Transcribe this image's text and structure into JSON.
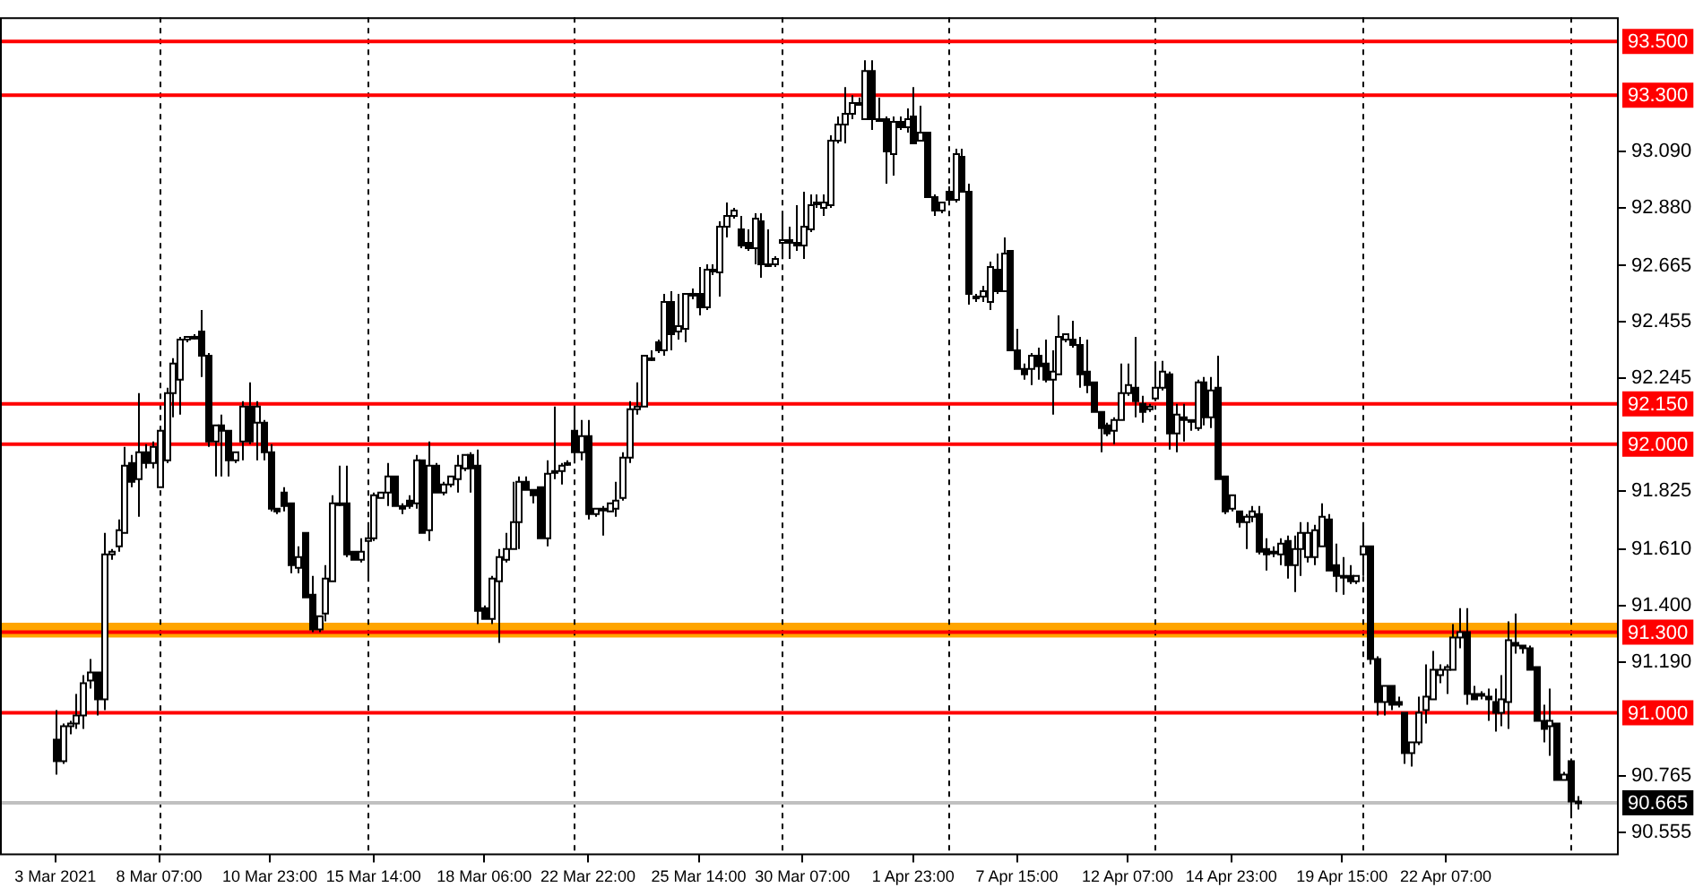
{
  "chart_data": {
    "type": "candlestick",
    "categories": [
      "3 Mar 2021",
      null,
      null,
      null,
      null,
      null,
      null,
      null,
      null,
      null,
      null,
      null,
      null,
      null,
      null,
      "8 Mar 07:00",
      null,
      null,
      null,
      null,
      null,
      null,
      null,
      null,
      null,
      null,
      null,
      null,
      null,
      null,
      null,
      "10 Mar 23:00",
      null,
      null,
      null,
      null,
      null,
      null,
      null,
      null,
      null,
      null,
      null,
      null,
      null,
      null,
      "15 Mar 14:00",
      null,
      null,
      null,
      null,
      null,
      null,
      null,
      null,
      null,
      null,
      null,
      null,
      null,
      null,
      null,
      "18 Mar 06:00",
      null,
      null,
      null,
      null,
      null,
      null,
      null,
      null,
      null,
      null,
      null,
      null,
      null,
      null,
      "22 Mar 22:00",
      null,
      null,
      null,
      null,
      null,
      null,
      null,
      null,
      null,
      null,
      null,
      null,
      null,
      null,
      null,
      "25 Mar 14:00",
      null,
      null,
      null,
      null,
      null,
      null,
      null,
      null,
      null,
      null,
      null,
      null,
      null,
      null,
      "30 Mar 07:00",
      null,
      null,
      null,
      null,
      null,
      null,
      null,
      null,
      null,
      null,
      null,
      null,
      null,
      null,
      null,
      "1 Apr 23:00",
      null,
      null,
      null,
      null,
      null,
      null,
      null,
      null,
      null,
      null,
      null,
      null,
      null,
      null,
      "7 Apr 15:00",
      null,
      null,
      null,
      null,
      null,
      null,
      null,
      null,
      null,
      null,
      null,
      null,
      null,
      null,
      null,
      "12 Apr 07:00",
      null,
      null,
      null,
      null,
      null,
      null,
      null,
      null,
      null,
      null,
      null,
      null,
      null,
      null,
      "14 Apr 23:00",
      null,
      null,
      null,
      null,
      null,
      null,
      null,
      null,
      null,
      null,
      null,
      null,
      null,
      null,
      null,
      "19 Apr 15:00",
      null,
      null,
      null,
      null,
      null,
      null,
      null,
      null,
      null,
      null,
      null,
      null,
      null,
      null,
      "22 Apr 07:00",
      null,
      null,
      null,
      null,
      null,
      null,
      null,
      null,
      null,
      null,
      null,
      null,
      null,
      null,
      null,
      null,
      null,
      null,
      null
    ],
    "ohlc": [
      [
        90.9,
        91.01,
        90.77,
        90.82
      ],
      [
        90.82,
        90.96,
        90.81,
        90.95
      ],
      [
        90.95,
        90.97,
        90.92,
        90.96
      ],
      [
        90.96,
        91.07,
        90.94,
        90.99
      ],
      [
        90.99,
        91.14,
        90.94,
        91.11
      ],
      [
        91.12,
        91.2,
        91.09,
        91.15
      ],
      [
        91.15,
        91.15,
        90.99,
        91.05
      ],
      [
        91.05,
        91.67,
        91.01,
        91.59
      ],
      [
        91.59,
        91.61,
        91.57,
        91.6
      ],
      [
        91.62,
        91.72,
        91.6,
        91.68
      ],
      [
        91.67,
        91.99,
        91.67,
        91.92
      ],
      [
        91.93,
        91.96,
        91.84,
        91.86
      ],
      [
        91.87,
        92.19,
        91.73,
        91.97
      ],
      [
        91.97,
        92.0,
        91.91,
        91.93
      ],
      [
        91.93,
        92.01,
        91.91,
        91.99
      ],
      [
        91.84,
        92.06,
        91.84,
        92.05
      ],
      [
        91.94,
        92.21,
        91.93,
        92.19
      ],
      [
        92.19,
        92.32,
        92.1,
        92.3
      ],
      [
        92.24,
        92.4,
        92.11,
        92.39
      ],
      [
        92.39,
        92.4,
        92.38,
        92.4
      ],
      [
        92.4,
        92.41,
        92.39,
        92.4
      ],
      [
        92.42,
        92.5,
        92.25,
        92.33
      ],
      [
        92.33,
        92.34,
        91.99,
        92.01
      ],
      [
        92.01,
        92.07,
        91.88,
        92.07
      ],
      [
        92.07,
        92.11,
        91.88,
        92.05
      ],
      [
        92.05,
        92.05,
        91.88,
        91.94
      ],
      [
        91.94,
        91.97,
        91.93,
        91.97
      ],
      [
        92.01,
        92.16,
        91.94,
        92.14
      ],
      [
        92.14,
        92.23,
        92.0,
        92.01
      ],
      [
        92.08,
        92.16,
        91.94,
        92.14
      ],
      [
        92.08,
        92.09,
        91.94,
        91.97
      ],
      [
        91.97,
        92.0,
        91.75,
        91.76
      ],
      [
        91.76,
        91.76,
        91.74,
        91.75
      ],
      [
        91.82,
        91.84,
        91.75,
        91.77
      ],
      [
        91.78,
        91.78,
        91.52,
        91.55
      ],
      [
        91.54,
        91.62,
        91.52,
        91.58
      ],
      [
        91.67,
        91.67,
        91.43,
        91.43
      ],
      [
        91.44,
        91.51,
        91.3,
        91.31
      ],
      [
        91.31,
        91.36,
        91.3,
        91.36
      ],
      [
        91.37,
        91.55,
        91.34,
        91.5
      ],
      [
        91.49,
        91.81,
        91.49,
        91.78
      ],
      [
        91.78,
        91.92,
        91.77,
        91.78
      ],
      [
        91.78,
        91.92,
        91.58,
        91.59
      ],
      [
        91.6,
        91.6,
        91.57,
        91.57
      ],
      [
        91.57,
        91.65,
        91.56,
        91.6
      ],
      [
        91.64,
        91.71,
        91.5,
        91.65
      ],
      [
        91.65,
        91.82,
        91.64,
        91.81
      ],
      [
        91.8,
        91.82,
        91.8,
        91.82
      ],
      [
        91.82,
        91.93,
        91.77,
        91.88
      ],
      [
        91.88,
        91.88,
        91.77,
        91.77
      ],
      [
        91.77,
        91.78,
        91.74,
        91.76
      ],
      [
        91.79,
        91.81,
        91.76,
        91.77
      ],
      [
        91.78,
        91.96,
        91.76,
        91.94
      ],
      [
        91.94,
        91.94,
        91.67,
        91.67
      ],
      [
        91.68,
        92.01,
        91.64,
        91.92
      ],
      [
        91.92,
        91.93,
        91.82,
        91.82
      ],
      [
        91.82,
        91.86,
        91.81,
        91.85
      ],
      [
        91.85,
        91.88,
        91.84,
        91.88
      ],
      [
        91.87,
        91.96,
        91.82,
        91.92
      ],
      [
        91.91,
        91.96,
        91.9,
        91.96
      ],
      [
        91.96,
        91.97,
        91.82,
        91.91
      ],
      [
        91.92,
        91.98,
        91.33,
        91.38
      ],
      [
        91.39,
        91.4,
        91.35,
        91.35
      ],
      [
        91.35,
        91.51,
        91.33,
        91.5
      ],
      [
        91.49,
        91.61,
        91.26,
        91.58
      ],
      [
        91.57,
        91.67,
        91.56,
        91.61
      ],
      [
        91.61,
        91.86,
        91.61,
        91.71
      ],
      [
        91.71,
        91.88,
        91.61,
        91.86
      ],
      [
        91.86,
        91.88,
        91.83,
        91.83
      ],
      [
        91.83,
        91.83,
        91.78,
        91.81
      ],
      [
        91.84,
        91.84,
        91.65,
        91.65
      ],
      [
        91.65,
        91.94,
        91.62,
        91.89
      ],
      [
        91.9,
        92.14,
        91.87,
        91.9
      ],
      [
        91.9,
        91.93,
        91.85,
        91.92
      ],
      [
        91.93,
        91.94,
        91.92,
        91.93
      ],
      [
        92.05,
        92.14,
        91.94,
        91.97
      ],
      [
        91.97,
        92.09,
        91.94,
        92.03
      ],
      [
        92.03,
        92.09,
        91.72,
        91.74
      ],
      [
        91.74,
        91.76,
        91.73,
        91.76
      ],
      [
        91.76,
        91.77,
        91.66,
        91.76
      ],
      [
        91.75,
        91.78,
        91.75,
        91.78
      ],
      [
        91.76,
        91.86,
        91.73,
        91.79
      ],
      [
        91.8,
        91.97,
        91.79,
        91.95
      ],
      [
        91.95,
        92.16,
        91.93,
        92.13
      ],
      [
        92.13,
        92.23,
        92.11,
        92.14
      ],
      [
        92.14,
        92.33,
        92.14,
        92.33
      ],
      [
        92.32,
        92.35,
        92.31,
        92.32
      ],
      [
        92.38,
        92.39,
        92.34,
        92.35
      ],
      [
        92.35,
        92.56,
        92.33,
        92.53
      ],
      [
        92.53,
        92.57,
        92.35,
        92.41
      ],
      [
        92.42,
        92.56,
        92.39,
        92.44
      ],
      [
        92.43,
        92.56,
        92.38,
        92.56
      ],
      [
        92.56,
        92.58,
        92.54,
        92.56
      ],
      [
        92.56,
        92.66,
        92.48,
        92.51
      ],
      [
        92.51,
        92.67,
        92.5,
        92.65
      ],
      [
        92.65,
        92.67,
        92.63,
        92.65
      ],
      [
        92.64,
        92.83,
        92.55,
        92.81
      ],
      [
        92.81,
        92.9,
        92.77,
        92.85
      ],
      [
        92.85,
        92.88,
        92.84,
        92.87
      ],
      [
        92.8,
        92.85,
        92.73,
        92.74
      ],
      [
        92.75,
        92.8,
        92.72,
        92.73
      ],
      [
        92.73,
        92.86,
        92.67,
        92.84
      ],
      [
        92.83,
        92.86,
        92.62,
        92.67
      ],
      [
        92.67,
        92.8,
        92.66,
        92.67
      ],
      [
        92.67,
        92.7,
        92.66,
        92.69
      ],
      [
        92.75,
        92.86,
        92.7,
        92.76
      ],
      [
        92.76,
        92.81,
        92.69,
        92.75
      ],
      [
        92.75,
        92.89,
        92.72,
        92.74
      ],
      [
        92.74,
        92.94,
        92.69,
        92.81
      ],
      [
        92.8,
        92.93,
        92.79,
        92.89
      ],
      [
        92.9,
        92.93,
        92.88,
        92.9
      ],
      [
        92.88,
        92.93,
        92.85,
        92.9
      ],
      [
        92.89,
        93.15,
        92.88,
        93.13
      ],
      [
        93.13,
        93.22,
        93.12,
        93.19
      ],
      [
        93.19,
        93.33,
        93.12,
        93.23
      ],
      [
        93.23,
        93.3,
        93.21,
        93.27
      ],
      [
        93.27,
        93.29,
        93.26,
        93.27
      ],
      [
        93.21,
        93.43,
        93.21,
        93.39
      ],
      [
        93.39,
        93.43,
        93.17,
        93.21
      ],
      [
        93.21,
        93.29,
        93.2,
        93.21
      ],
      [
        93.21,
        93.22,
        92.97,
        93.09
      ],
      [
        93.08,
        93.22,
        93.0,
        93.2
      ],
      [
        93.2,
        93.22,
        93.17,
        93.18
      ],
      [
        93.18,
        93.25,
        93.16,
        93.21
      ],
      [
        93.22,
        93.33,
        93.12,
        93.12
      ],
      [
        93.13,
        93.26,
        93.13,
        93.16
      ],
      [
        93.16,
        93.16,
        92.92,
        92.92
      ],
      [
        92.92,
        92.93,
        92.85,
        92.87
      ],
      [
        92.87,
        92.9,
        92.86,
        92.9
      ],
      [
        92.94,
        92.96,
        92.9,
        92.91
      ],
      [
        92.91,
        93.1,
        92.9,
        93.08
      ],
      [
        93.07,
        93.1,
        92.94,
        92.94
      ],
      [
        92.94,
        92.97,
        92.52,
        92.56
      ],
      [
        92.55,
        92.56,
        92.53,
        92.55
      ],
      [
        92.55,
        92.59,
        92.53,
        92.57
      ],
      [
        92.53,
        92.68,
        92.5,
        92.66
      ],
      [
        92.65,
        92.71,
        92.56,
        92.57
      ],
      [
        92.57,
        92.77,
        92.57,
        92.71
      ],
      [
        92.72,
        92.72,
        92.35,
        92.35
      ],
      [
        92.35,
        92.43,
        92.28,
        92.28
      ],
      [
        92.28,
        92.3,
        92.24,
        92.26
      ],
      [
        92.28,
        92.34,
        92.22,
        92.33
      ],
      [
        92.33,
        92.36,
        92.24,
        92.29
      ],
      [
        92.3,
        92.39,
        92.23,
        92.24
      ],
      [
        92.24,
        92.35,
        92.11,
        92.27
      ],
      [
        92.26,
        92.48,
        92.26,
        92.4
      ],
      [
        92.39,
        92.41,
        92.38,
        92.41
      ],
      [
        92.39,
        92.46,
        92.36,
        92.37
      ],
      [
        92.37,
        92.4,
        92.21,
        92.26
      ],
      [
        92.27,
        92.39,
        92.19,
        92.22
      ],
      [
        92.23,
        92.23,
        92.12,
        92.12
      ],
      [
        92.12,
        92.12,
        91.97,
        92.06
      ],
      [
        92.07,
        92.08,
        92.03,
        92.04
      ],
      [
        92.05,
        92.1,
        92.0,
        92.09
      ],
      [
        92.09,
        92.3,
        92.09,
        92.19
      ],
      [
        92.19,
        92.3,
        92.18,
        92.22
      ],
      [
        92.21,
        92.4,
        92.1,
        92.16
      ],
      [
        92.15,
        92.18,
        92.08,
        92.12
      ],
      [
        92.13,
        92.15,
        92.12,
        92.14
      ],
      [
        92.17,
        92.3,
        92.16,
        92.21
      ],
      [
        92.21,
        92.31,
        92.2,
        92.27
      ],
      [
        92.26,
        92.27,
        91.98,
        92.04
      ],
      [
        92.04,
        92.15,
        91.97,
        92.11
      ],
      [
        92.1,
        92.15,
        92.01,
        92.09
      ],
      [
        92.09,
        92.09,
        92.05,
        92.09
      ],
      [
        92.06,
        92.24,
        92.05,
        92.23
      ],
      [
        92.23,
        92.25,
        92.07,
        92.1
      ],
      [
        92.1,
        92.25,
        92.06,
        92.2
      ],
      [
        92.21,
        92.33,
        91.87,
        91.87
      ],
      [
        91.88,
        91.88,
        91.74,
        91.75
      ],
      [
        91.76,
        91.81,
        91.75,
        91.81
      ],
      [
        91.75,
        91.75,
        91.69,
        91.71
      ],
      [
        91.71,
        91.74,
        91.61,
        91.73
      ],
      [
        91.73,
        91.77,
        91.71,
        91.75
      ],
      [
        91.74,
        91.77,
        91.59,
        91.6
      ],
      [
        91.61,
        91.65,
        91.53,
        91.59
      ],
      [
        91.6,
        91.62,
        91.58,
        91.6
      ],
      [
        91.59,
        91.65,
        91.55,
        91.63
      ],
      [
        91.64,
        91.66,
        91.5,
        91.55
      ],
      [
        91.55,
        91.66,
        91.45,
        91.61
      ],
      [
        91.61,
        91.71,
        91.51,
        91.67
      ],
      [
        91.58,
        91.71,
        91.56,
        91.67
      ],
      [
        91.58,
        91.7,
        91.55,
        91.68
      ],
      [
        91.62,
        91.78,
        91.62,
        91.73
      ],
      [
        91.72,
        91.74,
        91.53,
        91.53
      ],
      [
        91.55,
        91.63,
        91.45,
        91.51
      ],
      [
        91.51,
        91.58,
        91.44,
        91.51
      ],
      [
        91.51,
        91.55,
        91.48,
        91.49
      ],
      [
        91.49,
        91.51,
        91.48,
        91.51
      ],
      [
        91.59,
        91.71,
        91.51,
        91.62
      ],
      [
        91.62,
        91.62,
        91.18,
        91.2
      ],
      [
        91.2,
        91.21,
        90.99,
        91.04
      ],
      [
        91.04,
        91.1,
        90.99,
        91.1
      ],
      [
        91.1,
        91.1,
        91.01,
        91.03
      ],
      [
        91.04,
        91.06,
        91.02,
        91.03
      ],
      [
        91.0,
        91.0,
        90.81,
        90.85
      ],
      [
        90.85,
        90.89,
        90.8,
        90.89
      ],
      [
        90.89,
        91.06,
        90.88,
        91.0
      ],
      [
        91.01,
        91.18,
        90.96,
        91.06
      ],
      [
        91.05,
        91.23,
        91.05,
        91.16
      ],
      [
        91.14,
        91.18,
        91.11,
        91.16
      ],
      [
        91.16,
        91.18,
        91.07,
        91.17
      ],
      [
        91.16,
        91.33,
        91.16,
        91.28
      ],
      [
        91.28,
        91.39,
        91.24,
        91.3
      ],
      [
        91.3,
        91.39,
        91.03,
        91.07
      ],
      [
        91.07,
        91.1,
        91.05,
        91.05
      ],
      [
        91.07,
        91.08,
        91.05,
        91.07
      ],
      [
        91.06,
        91.09,
        90.97,
        91.05
      ],
      [
        91.04,
        91.09,
        90.93,
        91.0
      ],
      [
        91.0,
        91.14,
        90.95,
        91.05
      ],
      [
        91.04,
        91.34,
        90.94,
        91.27
      ],
      [
        91.26,
        91.37,
        91.22,
        91.25
      ],
      [
        91.25,
        91.25,
        91.22,
        91.24
      ],
      [
        91.24,
        91.25,
        91.16,
        91.16
      ],
      [
        91.17,
        91.17,
        90.97,
        90.97
      ],
      [
        90.97,
        91.03,
        90.89,
        90.94
      ],
      [
        90.95,
        91.09,
        90.84,
        90.97
      ],
      [
        90.96,
        90.96,
        90.75,
        90.75
      ],
      [
        90.75,
        90.78,
        90.75,
        90.77
      ],
      [
        90.82,
        90.83,
        90.62,
        90.67
      ],
      [
        90.67,
        90.69,
        90.64,
        90.67
      ]
    ],
    "ylim": [
      90.47,
      93.59
    ],
    "yticks": [
      {
        "value": 93.09,
        "label": "93.090"
      },
      {
        "value": 92.88,
        "label": "92.880"
      },
      {
        "value": 92.665,
        "label": "92.665"
      },
      {
        "value": 92.455,
        "label": "92.455"
      },
      {
        "value": 92.245,
        "label": "92.245"
      },
      {
        "value": 91.825,
        "label": "91.825"
      },
      {
        "value": 91.61,
        "label": "91.610"
      },
      {
        "value": 91.4,
        "label": "91.400"
      },
      {
        "value": 91.19,
        "label": "91.190"
      },
      {
        "value": 90.765,
        "label": "90.765"
      },
      {
        "value": 90.555,
        "label": "90.555"
      }
    ],
    "bands": [
      {
        "axis": "y",
        "from": 91.28,
        "to": 91.335,
        "color": "#ffa500"
      }
    ],
    "ref_lines": [
      {
        "axis": "y",
        "value": 93.5,
        "label": "93.500",
        "color": "#ff0000"
      },
      {
        "axis": "y",
        "value": 93.3,
        "label": "93.300",
        "color": "#ff0000"
      },
      {
        "axis": "y",
        "value": 92.15,
        "label": "92.150",
        "color": "#ff0000"
      },
      {
        "axis": "y",
        "value": 92.0,
        "label": "92.000",
        "color": "#ff0000"
      },
      {
        "axis": "y",
        "value": 91.3,
        "label": "91.300",
        "color": "#ff0000"
      },
      {
        "axis": "y",
        "value": 91.0,
        "label": "91.000",
        "color": "#ff0000"
      },
      {
        "axis": "y",
        "value": 90.665,
        "label": "90.665",
        "color": "#c0c0c0"
      }
    ]
  }
}
